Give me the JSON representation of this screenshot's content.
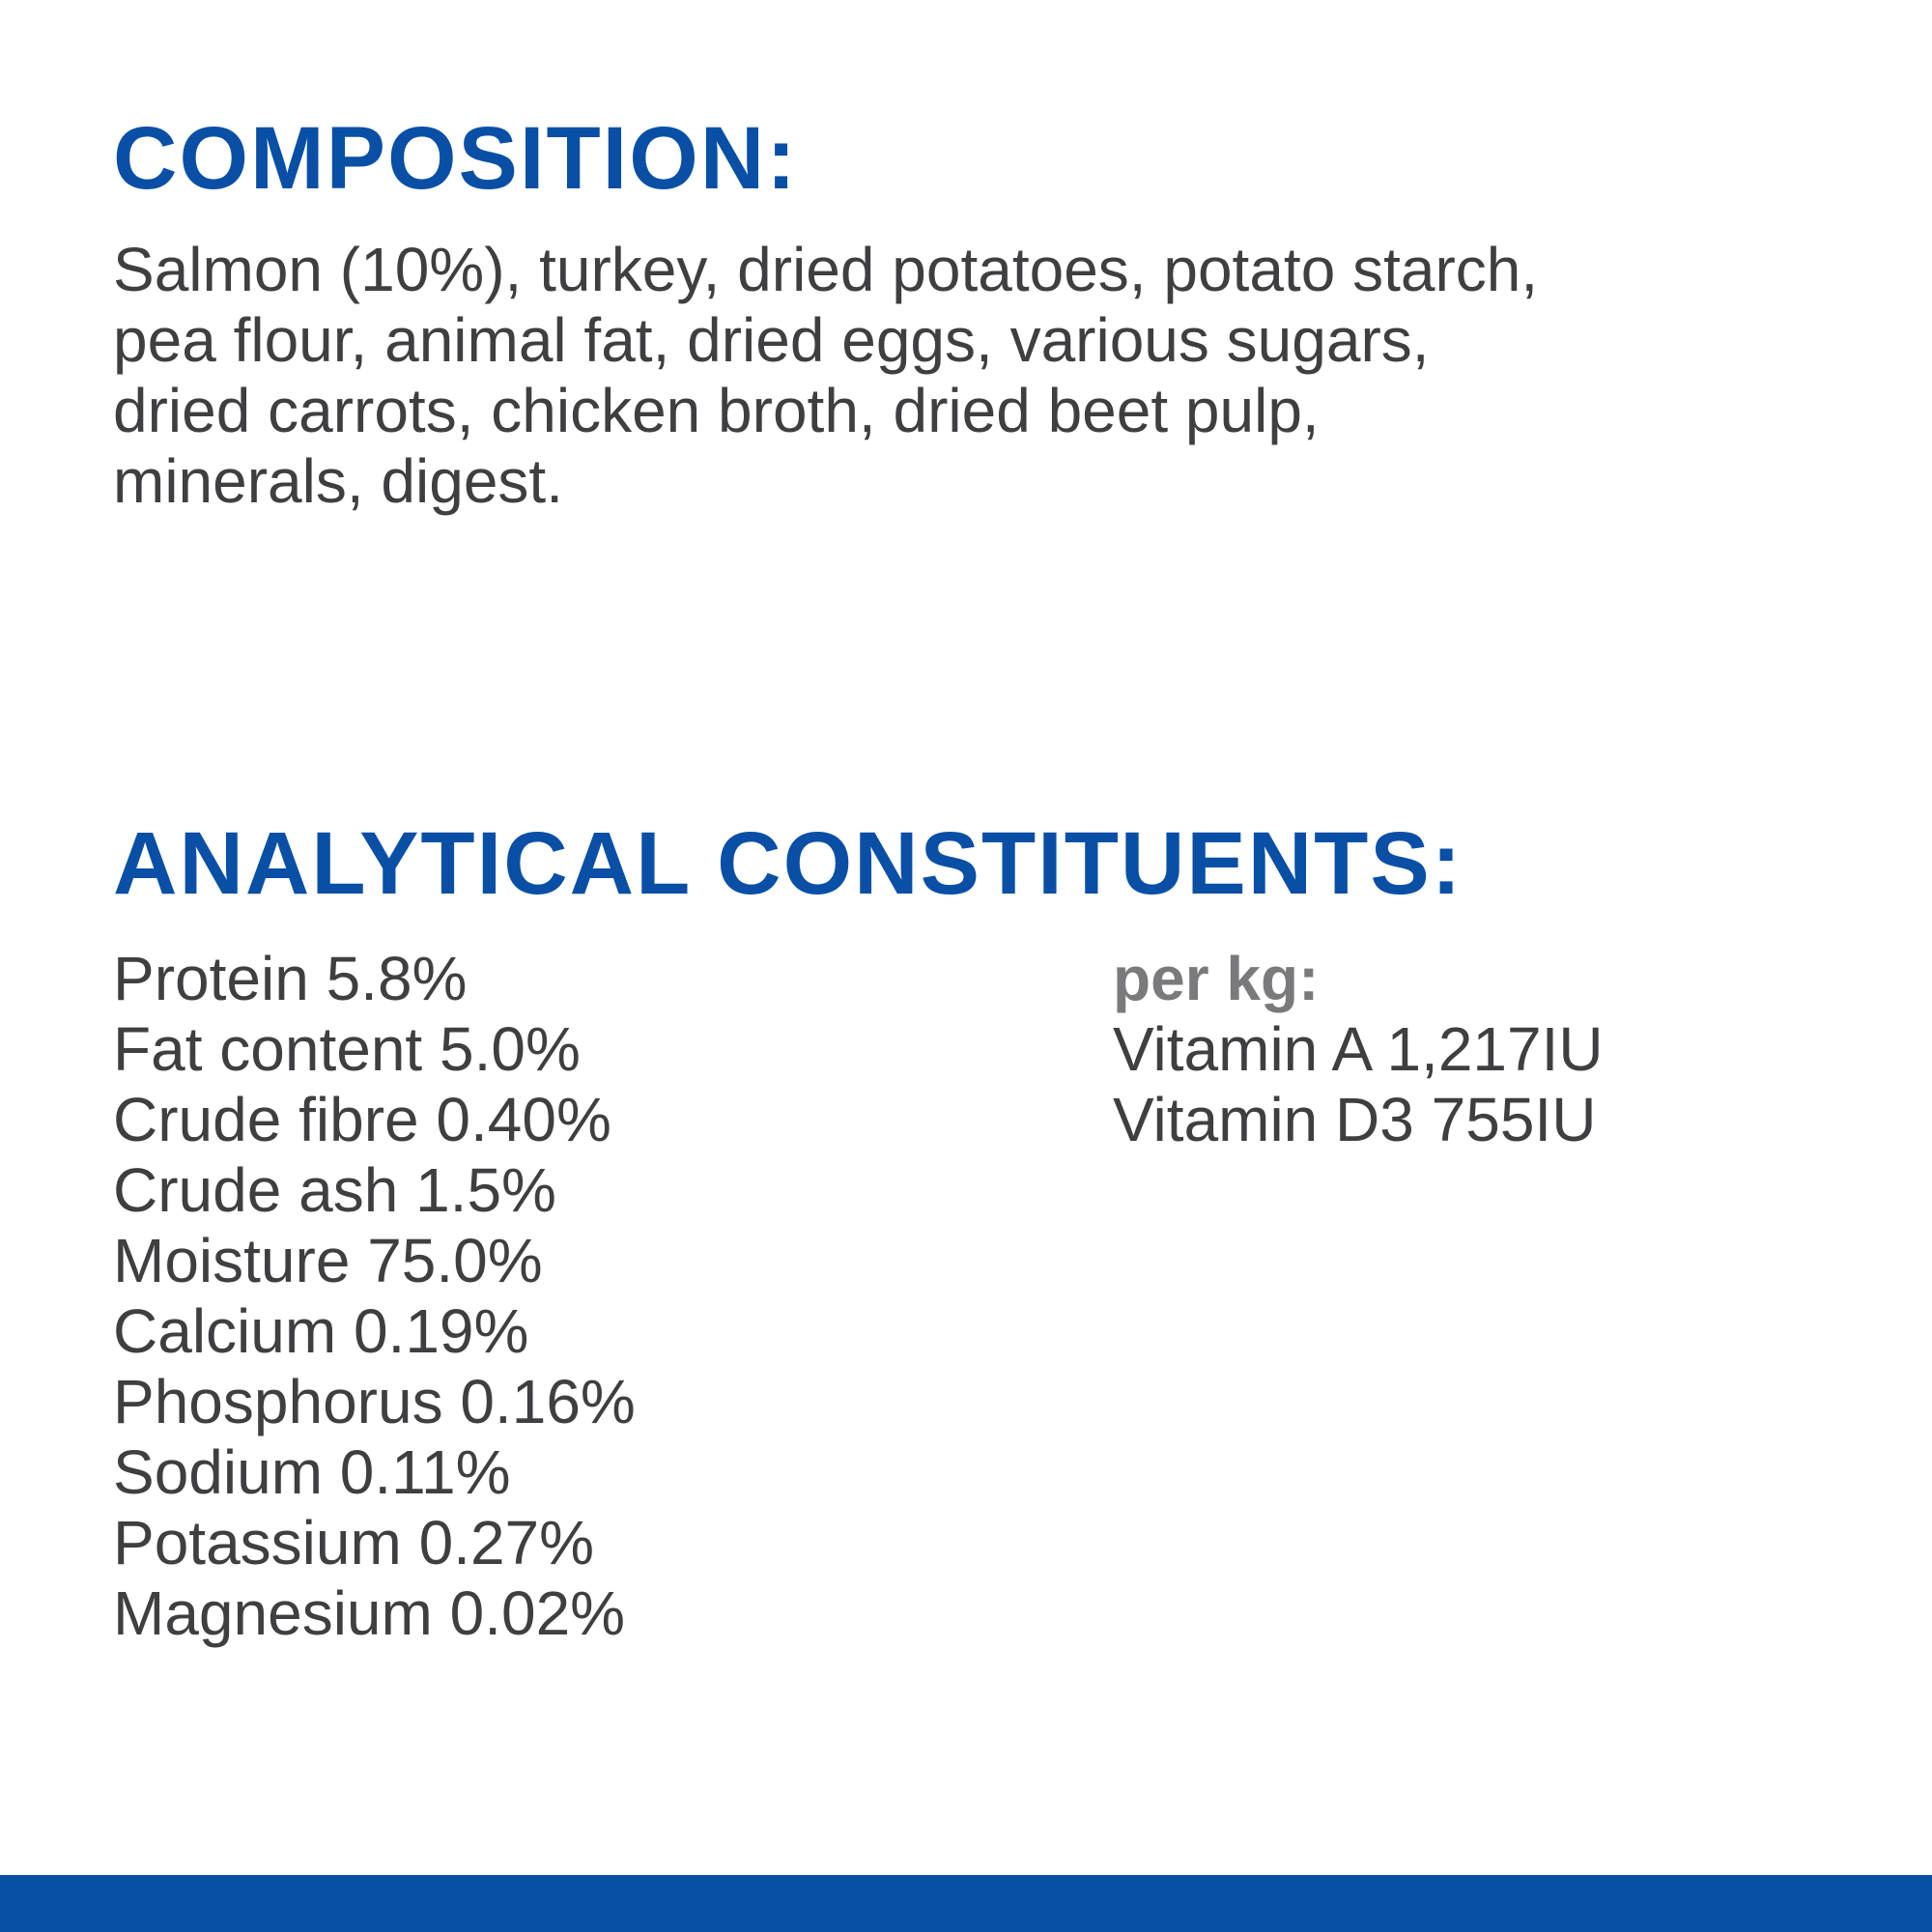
{
  "composition": {
    "title": "COMPOSITION:",
    "lines": [
      "Salmon (10%), turkey, dried potatoes, potato starch,",
      "pea flour, animal fat, dried eggs, various sugars,",
      "dried carrots, chicken broth, dried beet pulp,",
      "minerals, digest."
    ]
  },
  "analytical_constituents": {
    "title": "ANALYTICAL CONSTITUENTS:",
    "items": [
      "Protein 5.8%",
      "Fat content 5.0%",
      "Crude fibre 0.40%",
      "Crude ash 1.5%",
      "Moisture 75.0%",
      "Calcium 0.19%",
      "Phosphorus 0.16%",
      "Sodium 0.11%",
      "Potassium 0.27%",
      "Magnesium 0.02%"
    ],
    "per_kg": {
      "title": "per kg:",
      "items": [
        "Vitamin A 1,217IU",
        "Vitamin D3 755IU"
      ]
    }
  }
}
